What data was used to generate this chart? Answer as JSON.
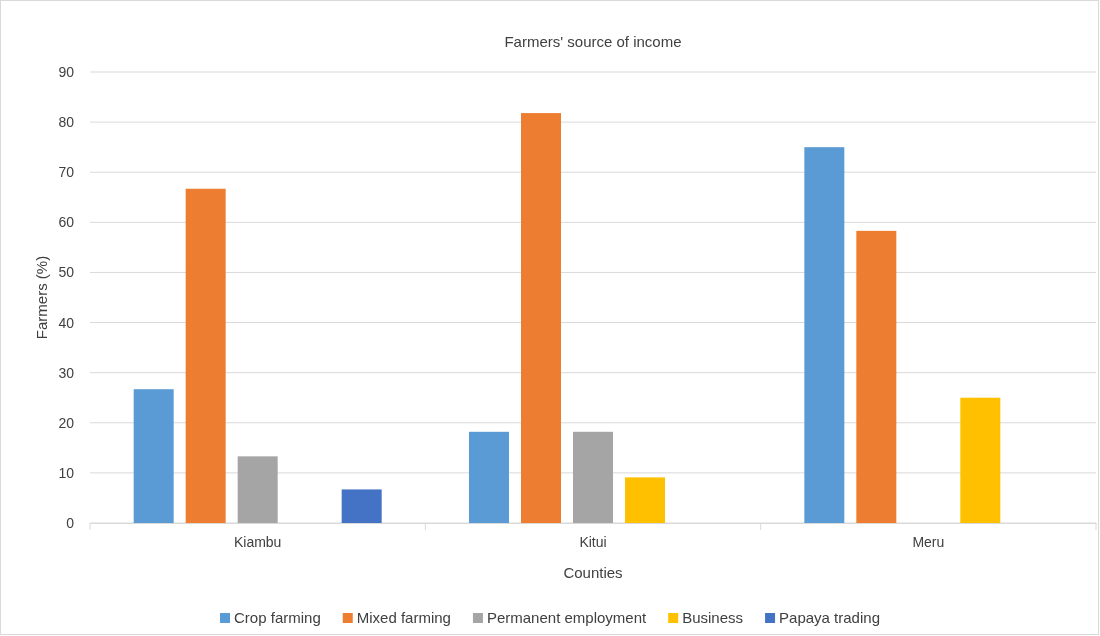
{
  "chart_data": {
    "type": "bar",
    "title": "Farmers' source of income",
    "xlabel": "Counties",
    "ylabel": "Farmers (%)",
    "categories": [
      "Kiambu",
      "Kitui",
      "Meru"
    ],
    "series": [
      {
        "name": "Crop farming",
        "color": "#5b9bd5",
        "values": [
          26.7,
          18.2,
          75
        ]
      },
      {
        "name": "Mixed farming",
        "color": "#ed7d31",
        "values": [
          66.7,
          81.8,
          58.3
        ]
      },
      {
        "name": "Permanent employment",
        "color": "#a5a5a5",
        "values": [
          13.3,
          18.2,
          null
        ]
      },
      {
        "name": "Business",
        "color": "#ffc000",
        "values": [
          null,
          9.1,
          25
        ]
      },
      {
        "name": "Papaya trading",
        "color": "#4472c4",
        "values": [
          6.7,
          null,
          null
        ]
      }
    ],
    "ylim": [
      0,
      90
    ],
    "yticks": [
      0,
      10,
      20,
      30,
      40,
      50,
      60,
      70,
      80,
      90
    ],
    "grid": "y",
    "legend": "bottom"
  }
}
